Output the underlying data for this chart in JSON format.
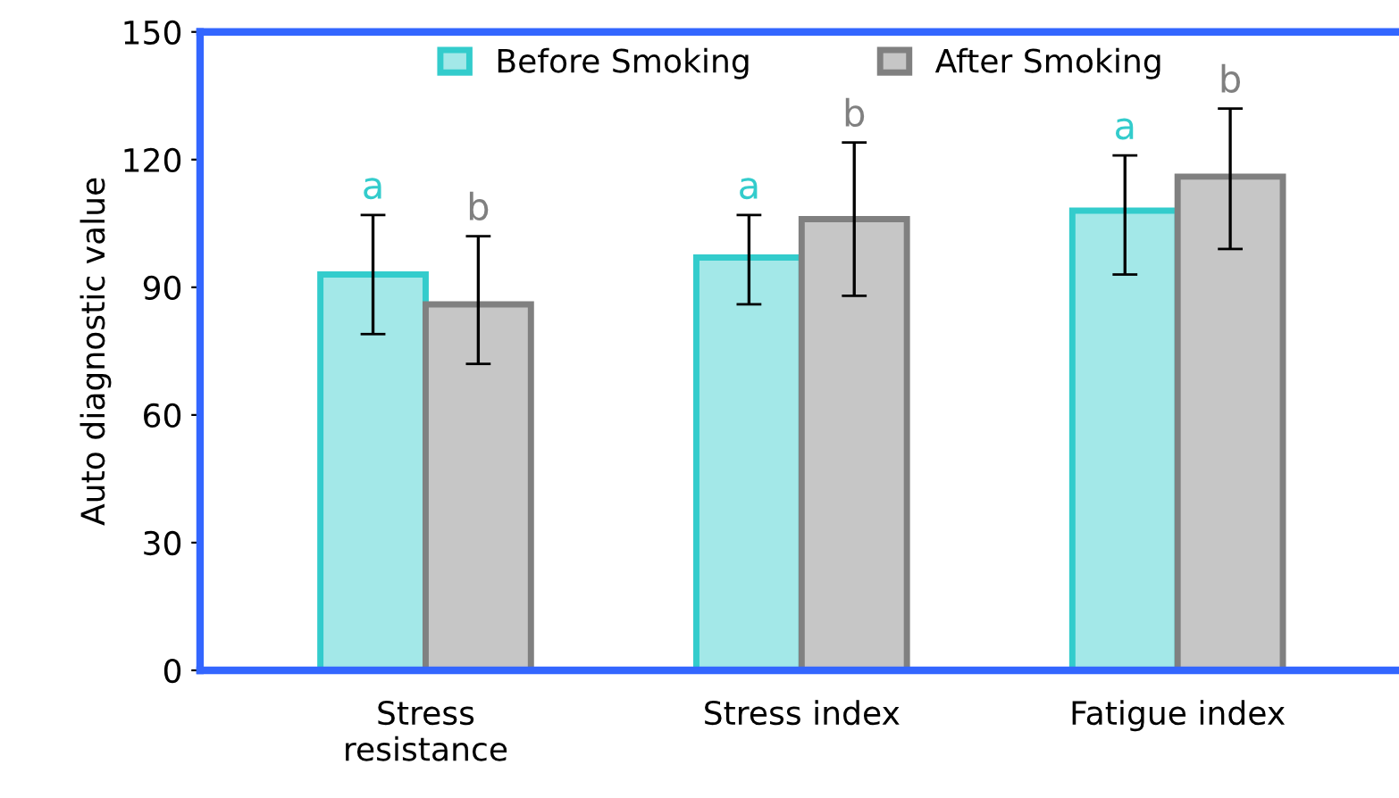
{
  "chart_data": {
    "type": "bar",
    "ylabel": "Auto diagnostic value",
    "categories": [
      "Stress\nresistance",
      "Stress index",
      "Fatigue index"
    ],
    "series": [
      {
        "name": "Before Smoking",
        "color": "#33cccc",
        "values": [
          93,
          97,
          108
        ],
        "errors": [
          [
            79,
            107
          ],
          [
            86,
            107
          ],
          [
            93,
            121
          ]
        ],
        "value_labels": [
          "a",
          "a",
          "a"
        ]
      },
      {
        "name": "After Smoking",
        "color": "#808080",
        "values": [
          86,
          106,
          116
        ],
        "errors": [
          [
            72,
            102
          ],
          [
            88,
            124
          ],
          [
            99,
            132
          ]
        ],
        "value_labels": [
          "b",
          "b",
          "b"
        ]
      }
    ],
    "ylim": [
      0,
      150
    ],
    "yticks": [
      0,
      30,
      60,
      90,
      120,
      150
    ],
    "grid": false,
    "legend": "top"
  }
}
